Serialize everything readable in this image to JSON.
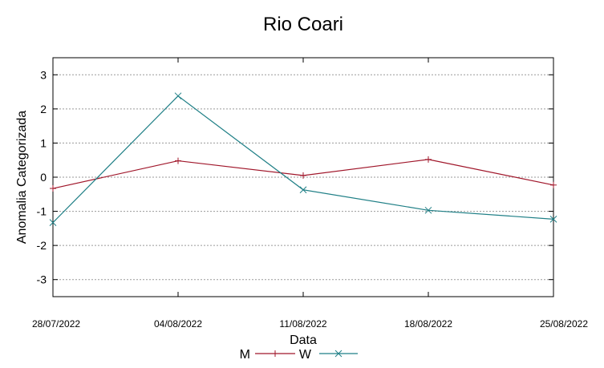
{
  "chart_data": {
    "type": "line",
    "title": "Rio Coari",
    "xlabel": "Data",
    "ylabel": "Anomalia Categorizada",
    "categories": [
      "28/07/2022",
      "04/08/2022",
      "11/08/2022",
      "18/08/2022",
      "25/08/2022"
    ],
    "ylim": [
      -3.5,
      3.5
    ],
    "yticks": [
      3,
      2,
      1,
      0,
      -1,
      -2,
      -3
    ],
    "ytick_labels": [
      "3",
      "2",
      "1",
      "0",
      "-1",
      "-2",
      "-3"
    ],
    "grid": true,
    "legend_position": "bottom",
    "series": [
      {
        "name": "M",
        "values": [
          -0.33,
          0.48,
          0.05,
          0.52,
          -0.23
        ],
        "color": "#a0162a",
        "marker": "plus"
      },
      {
        "name": "W",
        "values": [
          -1.33,
          2.38,
          -0.37,
          -0.97,
          -1.23
        ],
        "color": "#1f7f86",
        "marker": "cross"
      }
    ]
  }
}
